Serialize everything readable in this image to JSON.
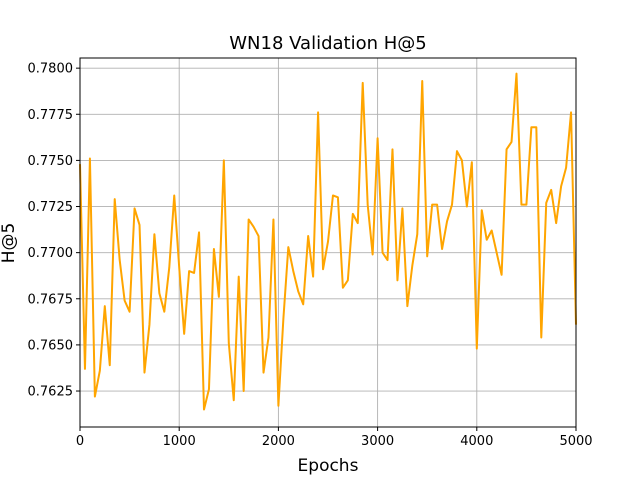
{
  "chart_data": {
    "type": "line",
    "title": "WN18 Validation H@5",
    "xlabel": "Epochs",
    "ylabel": "H@5",
    "xlim": [
      0,
      5000
    ],
    "ylim": [
      0.76055,
      0.78055
    ],
    "xticks": [
      0,
      1000,
      2000,
      3000,
      4000,
      5000
    ],
    "xtick_labels": [
      "0",
      "1000",
      "2000",
      "3000",
      "4000",
      "5000"
    ],
    "yticks": [
      0.7625,
      0.765,
      0.7675,
      0.77,
      0.7725,
      0.775,
      0.7775,
      0.78
    ],
    "ytick_labels": [
      "0.7625",
      "0.7650",
      "0.7675",
      "0.7700",
      "0.7725",
      "0.7750",
      "0.7775",
      "0.7800"
    ],
    "grid": true,
    "legend": "none",
    "series": [
      {
        "color": "#ffa500",
        "x": [
          0,
          50,
          100,
          150,
          200,
          250,
          300,
          350,
          400,
          450,
          500,
          550,
          600,
          650,
          700,
          750,
          800,
          850,
          900,
          950,
          1000,
          1050,
          1100,
          1150,
          1200,
          1250,
          1300,
          1350,
          1400,
          1450,
          1500,
          1550,
          1600,
          1650,
          1700,
          1750,
          1800,
          1850,
          1900,
          1950,
          2000,
          2050,
          2100,
          2150,
          2200,
          2250,
          2300,
          2350,
          2400,
          2450,
          2500,
          2550,
          2600,
          2650,
          2700,
          2750,
          2800,
          2850,
          2900,
          2950,
          3000,
          3050,
          3100,
          3150,
          3200,
          3250,
          3300,
          3350,
          3400,
          3450,
          3500,
          3550,
          3600,
          3650,
          3700,
          3750,
          3800,
          3850,
          3900,
          3950,
          4000,
          4050,
          4100,
          4150,
          4200,
          4250,
          4300,
          4350,
          4400,
          4450,
          4500,
          4550,
          4600,
          4650,
          4700,
          4750,
          4800,
          4850,
          4900,
          4950,
          5000
        ],
        "y": [
          0.7748,
          0.7637,
          0.7751,
          0.7622,
          0.7636,
          0.7671,
          0.7639,
          0.7729,
          0.7696,
          0.7674,
          0.7668,
          0.7724,
          0.7715,
          0.7635,
          0.7661,
          0.771,
          0.7678,
          0.7668,
          0.7692,
          0.7731,
          0.7692,
          0.7656,
          0.769,
          0.7689,
          0.7711,
          0.7615,
          0.7626,
          0.7702,
          0.7676,
          0.775,
          0.7651,
          0.762,
          0.7687,
          0.7625,
          0.7718,
          0.7714,
          0.7709,
          0.7635,
          0.7654,
          0.7718,
          0.7617,
          0.7664,
          0.7703,
          0.769,
          0.7679,
          0.7672,
          0.7709,
          0.7687,
          0.7776,
          0.7691,
          0.7706,
          0.7731,
          0.773,
          0.7681,
          0.7685,
          0.7721,
          0.7716,
          0.7792,
          0.7726,
          0.7699,
          0.7762,
          0.77,
          0.7696,
          0.7756,
          0.7685,
          0.7724,
          0.7671,
          0.7693,
          0.771,
          0.7793,
          0.7698,
          0.7726,
          0.7726,
          0.7702,
          0.7717,
          0.7726,
          0.7755,
          0.775,
          0.7725,
          0.7749,
          0.7648,
          0.7723,
          0.7707,
          0.7712,
          0.77,
          0.7688,
          0.7756,
          0.776,
          0.7797,
          0.7726,
          0.7726,
          0.7768,
          0.7768,
          0.7654,
          0.7727,
          0.7734,
          0.7716,
          0.7736,
          0.7746,
          0.7776,
          0.7661
        ]
      }
    ]
  }
}
